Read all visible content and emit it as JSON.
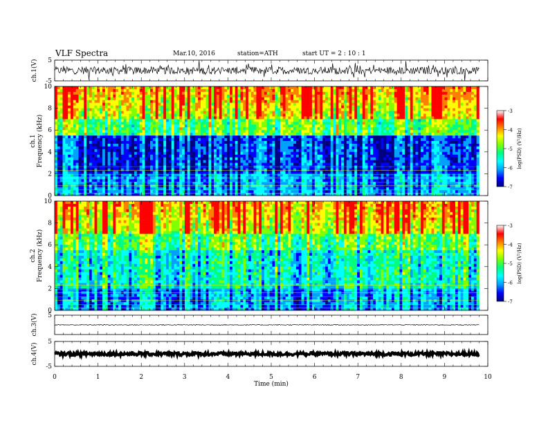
{
  "header": {
    "title": "VLF  Spectra",
    "date": "Mar.10, 2016",
    "station": "station=ATH",
    "start": "start  UT  =   2  : 10 : 1"
  },
  "chart_data": {
    "type": "heatmap",
    "xlabel": "Time  (min)",
    "xlim": [
      0,
      10
    ],
    "x_ticks": [
      "0",
      "1",
      "2",
      "3",
      "4",
      "5",
      "6",
      "7",
      "8",
      "9",
      "10"
    ],
    "panels": [
      {
        "name": "waveform-ch1",
        "type": "line",
        "ylabel": "ch.1(V)",
        "ylim": [
          -5,
          5
        ],
        "y_ticks": [
          "5",
          "-5"
        ],
        "amplitude": 0.4
      },
      {
        "name": "spectrogram-ch1",
        "type": "heatmap",
        "ylabel_top": "ch.1",
        "ylabel": "Frequency  (kHz)",
        "ylim": [
          0,
          10
        ],
        "y_ticks": [
          "0",
          "2",
          "4",
          "6",
          "8",
          "10"
        ]
      },
      {
        "name": "spectrogram-ch2",
        "type": "heatmap",
        "ylabel_top": "ch.2",
        "ylabel": "Frequency  (kHz)",
        "ylim": [
          0,
          10
        ],
        "y_ticks": [
          "0",
          "2",
          "4",
          "6",
          "8",
          "10"
        ]
      },
      {
        "name": "waveform-ch3",
        "type": "line",
        "ylabel": "ch.3(V)",
        "ylim": [
          -5,
          5
        ],
        "y_ticks": [
          "5"
        ],
        "amplitude": 0.05
      },
      {
        "name": "waveform-ch4",
        "type": "line",
        "ylabel": "ch.4(V)",
        "ylim": [
          -5,
          5
        ],
        "y_ticks": [
          "5",
          "-5"
        ],
        "amplitude": 0.15
      }
    ],
    "colorbar": {
      "label": "log(PSD) (V²/Hz)",
      "range": [
        -7,
        -3
      ],
      "ticks": [
        "-3",
        "-4",
        "-5",
        "-6",
        "-7"
      ],
      "colors": [
        "#000080",
        "#0000ff",
        "#00a0ff",
        "#00ffff",
        "#00ff80",
        "#80ff00",
        "#ffff00",
        "#ff8000",
        "#ff0000",
        "#ffffff"
      ]
    },
    "data_end_min": 9.8
  }
}
